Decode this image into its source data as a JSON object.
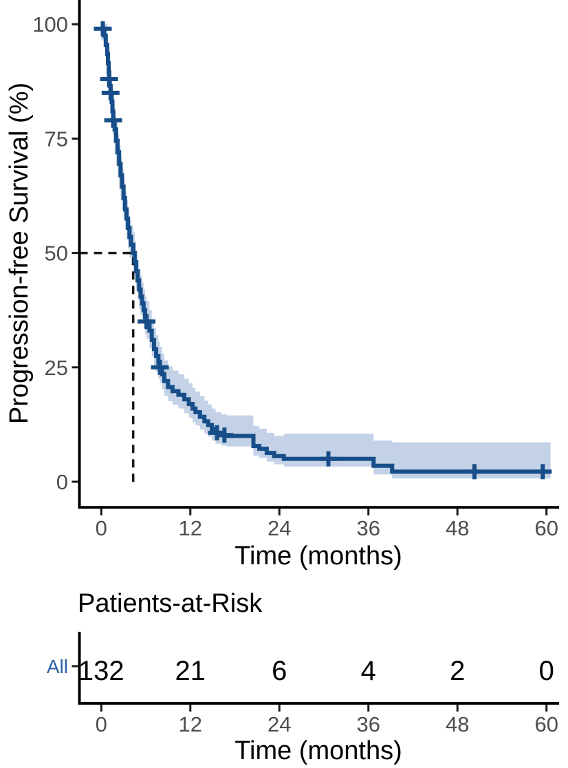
{
  "colors": {
    "curve": "#174e89",
    "ci_band": "#c3d2e6",
    "axis": "#000000",
    "tick": "#1a1a1a",
    "tick_label": "#4d4d4d",
    "median_dash": "#1a1a1a",
    "risk_label_blue": "#2d5fa6",
    "background": "#ffffff"
  },
  "chart_data": {
    "type": "line",
    "variant": "kaplan_meier_step",
    "title": "",
    "xlabel": "Time (months)",
    "ylabel": "Progression-free Survival (%)",
    "xlim": [
      0,
      60
    ],
    "ylim": [
      0,
      100
    ],
    "x_ticks": [
      0,
      12,
      24,
      36,
      48,
      60
    ],
    "y_ticks": [
      0,
      25,
      50,
      75,
      100
    ],
    "grid": false,
    "legend": false,
    "median_annotation": {
      "time_months": 4.3,
      "survival_pct": 50,
      "line_style": "dashed"
    },
    "series": [
      {
        "name": "All",
        "color": "#174e89",
        "ci_color": "#c3d2e6",
        "end_time": 60.55,
        "steps": [
          [
            0,
            99
          ],
          [
            0.4,
            97.5
          ],
          [
            0.6,
            95.5
          ],
          [
            0.8,
            93.5
          ],
          [
            0.9,
            91.5
          ],
          [
            1.0,
            89.5
          ],
          [
            1.05,
            88
          ],
          [
            1.15,
            86.5
          ],
          [
            1.25,
            85
          ],
          [
            1.4,
            83
          ],
          [
            1.5,
            81
          ],
          [
            1.6,
            79
          ],
          [
            1.8,
            77
          ],
          [
            2.0,
            74.5
          ],
          [
            2.2,
            72
          ],
          [
            2.4,
            69.5
          ],
          [
            2.6,
            67
          ],
          [
            2.8,
            64.5
          ],
          [
            3.0,
            62
          ],
          [
            3.2,
            59.5
          ],
          [
            3.4,
            57.5
          ],
          [
            3.6,
            55.5
          ],
          [
            3.8,
            53.5
          ],
          [
            4.0,
            51.8
          ],
          [
            4.3,
            50
          ],
          [
            4.5,
            48
          ],
          [
            4.7,
            46
          ],
          [
            4.9,
            44
          ],
          [
            5.1,
            42
          ],
          [
            5.3,
            40.5
          ],
          [
            5.5,
            39
          ],
          [
            5.7,
            37.5
          ],
          [
            5.9,
            36
          ],
          [
            6.1,
            35
          ],
          [
            6.5,
            33
          ],
          [
            6.8,
            31
          ],
          [
            7.1,
            29
          ],
          [
            7.4,
            27.5
          ],
          [
            7.7,
            26
          ],
          [
            7.9,
            25
          ],
          [
            8.2,
            23.5
          ],
          [
            8.5,
            22
          ],
          [
            9.0,
            20.7
          ],
          [
            9.6,
            19.8
          ],
          [
            10.4,
            19
          ],
          [
            11.2,
            18
          ],
          [
            11.8,
            17
          ],
          [
            12.3,
            16
          ],
          [
            12.7,
            15.2
          ],
          [
            13.3,
            14.2
          ],
          [
            13.9,
            13.2
          ],
          [
            14.4,
            12.4
          ],
          [
            14.9,
            11.5
          ],
          [
            15.4,
            10.7
          ],
          [
            16.2,
            10.2
          ],
          [
            16.9,
            10
          ],
          [
            20.5,
            7.8
          ],
          [
            21.3,
            7.2
          ],
          [
            22.3,
            6.3
          ],
          [
            23.3,
            5.6
          ],
          [
            24.6,
            5
          ],
          [
            36.7,
            3.5
          ],
          [
            39.2,
            2.2
          ],
          [
            60.55,
            2.2
          ]
        ],
        "censor_marks": [
          [
            0.2,
            99
          ],
          [
            1.05,
            88
          ],
          [
            1.25,
            85
          ],
          [
            1.6,
            79
          ],
          [
            6.1,
            35
          ],
          [
            7.9,
            25
          ],
          [
            15.6,
            10.7
          ],
          [
            16.6,
            10.2
          ],
          [
            30.6,
            5
          ],
          [
            50.3,
            2.2
          ],
          [
            59.5,
            2.2
          ]
        ],
        "ci_upper": [
          [
            0,
            100
          ],
          [
            0.8,
            96
          ],
          [
            1.0,
            93
          ],
          [
            1.2,
            90
          ],
          [
            1.4,
            87
          ],
          [
            1.6,
            84
          ],
          [
            1.8,
            81
          ],
          [
            2.0,
            78.5
          ],
          [
            2.2,
            76
          ],
          [
            2.4,
            73.5
          ],
          [
            2.6,
            71
          ],
          [
            2.8,
            68.5
          ],
          [
            3.0,
            66
          ],
          [
            3.2,
            63.5
          ],
          [
            3.4,
            61.5
          ],
          [
            3.6,
            59.5
          ],
          [
            3.8,
            57.5
          ],
          [
            4.0,
            56
          ],
          [
            4.3,
            54.5
          ],
          [
            4.5,
            52.5
          ],
          [
            4.7,
            50.5
          ],
          [
            4.9,
            48.5
          ],
          [
            5.1,
            46.5
          ],
          [
            5.3,
            45
          ],
          [
            5.5,
            43.5
          ],
          [
            5.7,
            42
          ],
          [
            5.9,
            40.5
          ],
          [
            6.1,
            39.5
          ],
          [
            6.5,
            37.5
          ],
          [
            6.8,
            35.5
          ],
          [
            7.1,
            33.5
          ],
          [
            7.4,
            32
          ],
          [
            7.7,
            30.5
          ],
          [
            7.9,
            29.5
          ],
          [
            8.2,
            28
          ],
          [
            8.5,
            26.5
          ],
          [
            9.0,
            25.2
          ],
          [
            9.6,
            24.3
          ],
          [
            10.4,
            23.5
          ],
          [
            11.2,
            22.5
          ],
          [
            11.8,
            21.5
          ],
          [
            12.3,
            20.5
          ],
          [
            12.7,
            19.7
          ],
          [
            13.3,
            18.7
          ],
          [
            13.9,
            17.7
          ],
          [
            14.4,
            16.9
          ],
          [
            14.9,
            16
          ],
          [
            15.4,
            15.2
          ],
          [
            16.2,
            14.7
          ],
          [
            16.9,
            14.5
          ],
          [
            20.5,
            12.2
          ],
          [
            21.3,
            11.6
          ],
          [
            22.3,
            10.7
          ],
          [
            23.3,
            10
          ],
          [
            24.6,
            10.5
          ],
          [
            36.7,
            9.0
          ],
          [
            39.2,
            8.6
          ],
          [
            60.55,
            8.6
          ]
        ],
        "ci_lower": [
          [
            0,
            96.5
          ],
          [
            0.5,
            94
          ],
          [
            0.7,
            91.5
          ],
          [
            0.9,
            88.5
          ],
          [
            1.05,
            86
          ],
          [
            1.15,
            83.5
          ],
          [
            1.25,
            81
          ],
          [
            1.4,
            78
          ],
          [
            1.5,
            76
          ],
          [
            1.6,
            74
          ],
          [
            1.8,
            71.5
          ],
          [
            2.0,
            69
          ],
          [
            2.2,
            66.5
          ],
          [
            2.4,
            64
          ],
          [
            2.6,
            61.5
          ],
          [
            2.8,
            59.5
          ],
          [
            3.0,
            57.5
          ],
          [
            3.2,
            55
          ],
          [
            3.4,
            53
          ],
          [
            3.6,
            51
          ],
          [
            3.8,
            49
          ],
          [
            4.0,
            47.3
          ],
          [
            4.3,
            45.5
          ],
          [
            4.5,
            43.7
          ],
          [
            4.7,
            41.8
          ],
          [
            4.9,
            39.8
          ],
          [
            5.1,
            37.8
          ],
          [
            5.3,
            36.4
          ],
          [
            5.5,
            35
          ],
          [
            5.7,
            33.6
          ],
          [
            5.9,
            32.2
          ],
          [
            6.1,
            31.2
          ],
          [
            6.5,
            29.2
          ],
          [
            6.8,
            27.3
          ],
          [
            7.1,
            25.4
          ],
          [
            7.4,
            24
          ],
          [
            7.7,
            22.6
          ],
          [
            7.9,
            21.6
          ],
          [
            8.2,
            20.2
          ],
          [
            8.5,
            18.8
          ],
          [
            9.0,
            17.6
          ],
          [
            9.6,
            16.8
          ],
          [
            10.4,
            16
          ],
          [
            11.2,
            15
          ],
          [
            11.8,
            14
          ],
          [
            12.3,
            13
          ],
          [
            12.7,
            12.3
          ],
          [
            13.3,
            11.4
          ],
          [
            13.9,
            10.5
          ],
          [
            14.4,
            9.8
          ],
          [
            14.9,
            9
          ],
          [
            15.4,
            8.3
          ],
          [
            16.2,
            7.9
          ],
          [
            16.9,
            7.7
          ],
          [
            20.5,
            5.7
          ],
          [
            21.3,
            5.2
          ],
          [
            22.3,
            4.4
          ],
          [
            23.3,
            3.8
          ],
          [
            24.6,
            3.3
          ],
          [
            36.7,
            1.6
          ],
          [
            39.2,
            0.7
          ],
          [
            60.55,
            0.7
          ]
        ]
      }
    ]
  },
  "risk_table": {
    "title": "Patients-at-Risk",
    "xlabel": "Time (months)",
    "x_ticks": [
      0,
      12,
      24,
      36,
      48,
      60
    ],
    "rows": [
      {
        "label": "All",
        "label_color": "#2d5fa6",
        "counts": [
          "132",
          "21",
          "6",
          "4",
          "2",
          "0"
        ]
      }
    ]
  }
}
